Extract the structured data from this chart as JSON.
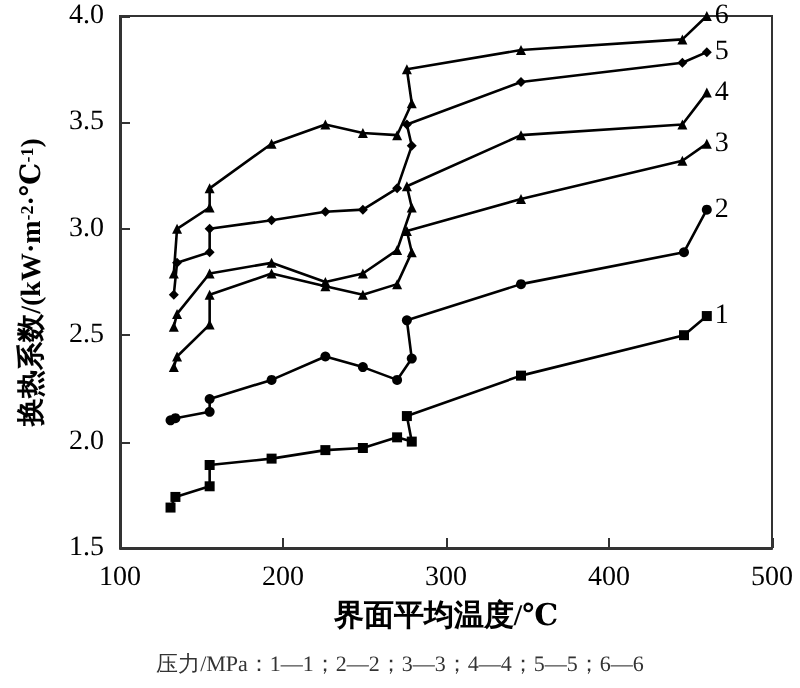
{
  "chart_data": {
    "type": "line",
    "xlabel": "界面平均温度/℃",
    "ylabel": "换热系数/(kW·m$^{-2}$·℃$^{-1}$)",
    "xlim": [
      100,
      500
    ],
    "xticks": [
      100,
      200,
      300,
      400,
      500
    ],
    "ylim": [
      1.5,
      4.0
    ],
    "yticks": [
      1.5,
      {
        "value": 2,
        "label": "2.0"
      },
      2.5,
      {
        "value": 3,
        "label": "3.0"
      },
      3.5,
      {
        "value": 4,
        "label": "4.0"
      }
    ],
    "grid": false,
    "line_style": "solid",
    "series": [
      {
        "name": "1",
        "color": "#000000",
        "marker": "square",
        "x": [
          131,
          134,
          155,
          155,
          193,
          226,
          249,
          270,
          279,
          276,
          346,
          446,
          460
        ],
        "values": [
          1.69,
          1.74,
          1.79,
          1.89,
          1.92,
          1.96,
          1.97,
          2.02,
          2.0,
          2.12,
          2.31,
          2.5,
          2.59
        ]
      },
      {
        "name": "2",
        "color": "#000000",
        "marker": "circle",
        "x": [
          131,
          134,
          155,
          155,
          193,
          226,
          249,
          270,
          279,
          276,
          346,
          446,
          460
        ],
        "values": [
          2.1,
          2.11,
          2.14,
          2.2,
          2.29,
          2.4,
          2.35,
          2.29,
          2.39,
          2.57,
          2.74,
          2.89,
          3.09
        ]
      },
      {
        "name": "3",
        "color": "#000000",
        "marker": "triangle",
        "x": [
          133,
          135,
          155,
          155,
          193,
          226,
          249,
          270,
          279,
          276,
          346,
          445,
          460
        ],
        "values": [
          2.35,
          2.4,
          2.55,
          2.69,
          2.79,
          2.73,
          2.69,
          2.74,
          2.89,
          2.99,
          3.14,
          3.32,
          3.4
        ]
      },
      {
        "name": "4",
        "color": "#000000",
        "marker": "triangle",
        "x": [
          133,
          135,
          155,
          193,
          226,
          249,
          270,
          279,
          276,
          346,
          445,
          460
        ],
        "values": [
          2.54,
          2.6,
          2.79,
          2.84,
          2.75,
          2.79,
          2.9,
          3.1,
          3.2,
          3.44,
          3.49,
          3.64
        ]
      },
      {
        "name": "5",
        "color": "#000000",
        "marker": "diamond",
        "x": [
          133,
          135,
          155,
          155,
          193,
          226,
          249,
          270,
          279,
          276,
          346,
          445,
          460
        ],
        "values": [
          2.69,
          2.84,
          2.89,
          3.0,
          3.04,
          3.08,
          3.09,
          3.19,
          3.39,
          3.49,
          3.69,
          3.78,
          3.83
        ]
      },
      {
        "name": "6",
        "color": "#000000",
        "marker": "triangle",
        "x": [
          133,
          135,
          155,
          155,
          193,
          226,
          249,
          270,
          279,
          276,
          346,
          445,
          460
        ],
        "values": [
          2.79,
          3.0,
          3.1,
          3.19,
          3.4,
          3.49,
          3.45,
          3.44,
          3.59,
          3.75,
          3.84,
          3.89,
          4.0
        ]
      }
    ],
    "annotations": [
      "压力/MPa：1—1；2—2；3—3；4—4；5—5；6—6"
    ]
  }
}
